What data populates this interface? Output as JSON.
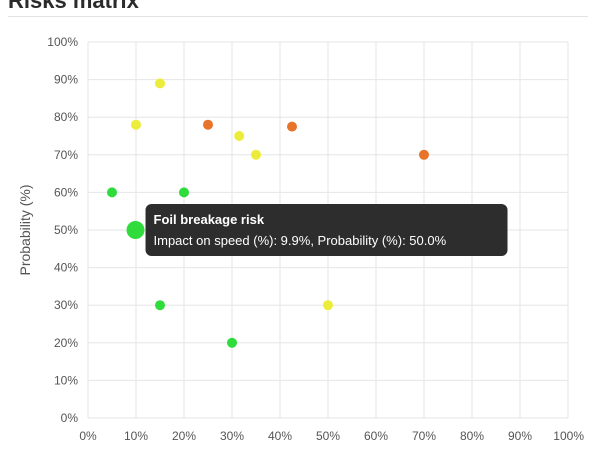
{
  "page": {
    "title": "Risks matrix"
  },
  "chart_data": {
    "type": "scatter",
    "title": "",
    "xlabel": "",
    "ylabel": "Probability (%)",
    "xlim": [
      0,
      100
    ],
    "ylim": [
      0,
      100
    ],
    "x_ticks": [
      "0%",
      "10%",
      "20%",
      "30%",
      "40%",
      "50%",
      "60%",
      "70%",
      "80%",
      "90%",
      "100%"
    ],
    "y_ticks": [
      "0%",
      "10%",
      "20%",
      "30%",
      "40%",
      "50%",
      "60%",
      "70%",
      "80%",
      "90%",
      "100%"
    ],
    "grid": true,
    "legend": "none",
    "colors": {
      "green": "#2fdc3b",
      "yellow": "#ecec3a",
      "orange": "#e8742b",
      "grid": "#e6e6e6",
      "tooltip_bg": "#2d2d2d"
    },
    "points": [
      {
        "x": 9.9,
        "y": 50,
        "color": "green",
        "highlighted": true
      },
      {
        "x": 5,
        "y": 60,
        "color": "green"
      },
      {
        "x": 20,
        "y": 60,
        "color": "green"
      },
      {
        "x": 15,
        "y": 30,
        "color": "green"
      },
      {
        "x": 30,
        "y": 20,
        "color": "green"
      },
      {
        "x": 15,
        "y": 89,
        "color": "yellow"
      },
      {
        "x": 10,
        "y": 78,
        "color": "yellow"
      },
      {
        "x": 31.5,
        "y": 75,
        "color": "yellow"
      },
      {
        "x": 35,
        "y": 70,
        "color": "yellow"
      },
      {
        "x": 50,
        "y": 30,
        "color": "yellow"
      },
      {
        "x": 25,
        "y": 78,
        "color": "orange"
      },
      {
        "x": 42.5,
        "y": 77.5,
        "color": "orange"
      },
      {
        "x": 70,
        "y": 70,
        "color": "orange"
      }
    ],
    "tooltip": {
      "title": "Foil breakage risk",
      "body": "Impact on speed (%): 9.9%, Probability (%): 50.0%"
    }
  }
}
